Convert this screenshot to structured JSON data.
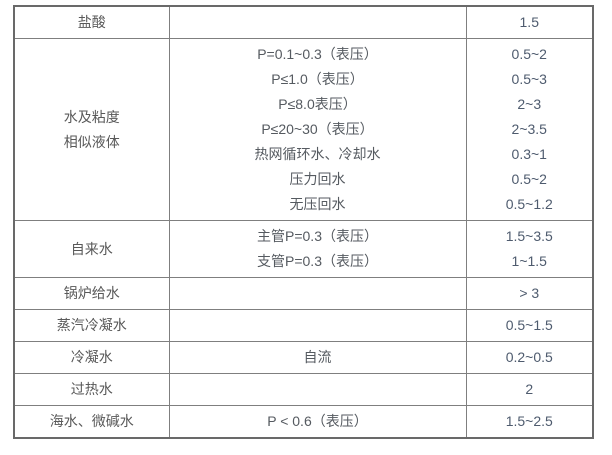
{
  "page": {
    "background": "#ffffff"
  },
  "table": {
    "description": "media-flow-velocity-table",
    "colors": {
      "outer_border": "#696969",
      "inner_border": "#7f7f7f",
      "name_text": "#595959",
      "condition_text": "#555a60",
      "value_text": "#4e5b6e"
    },
    "rows": [
      {
        "name": [
          "盐酸"
        ],
        "conditions": [],
        "values": [
          "1.5"
        ]
      },
      {
        "name": [
          "水及粘度",
          "相似液体"
        ],
        "conditions": [
          "P=0.1~0.3（表压）",
          "P≤1.0（表压）",
          "P≤8.0表压）",
          "P≤20~30（表压）",
          "热网循环水、冷却水",
          "压力回水",
          "无压回水"
        ],
        "values": [
          "0.5~2",
          "0.5~3",
          "2~3",
          "2~3.5",
          "0.3~1",
          "0.5~2",
          "0.5~1.2"
        ]
      },
      {
        "name": [
          "自来水"
        ],
        "conditions": [
          "主管P=0.3（表压）",
          "支管P=0.3（表压）"
        ],
        "values": [
          "1.5~3.5",
          "1~1.5"
        ]
      },
      {
        "name": [
          "锅炉给水"
        ],
        "conditions": [],
        "values": [
          "> 3"
        ]
      },
      {
        "name": [
          "蒸汽冷凝水"
        ],
        "conditions": [],
        "values": [
          "0.5~1.5"
        ]
      },
      {
        "name": [
          "冷凝水"
        ],
        "conditions": [
          "自流"
        ],
        "values": [
          "0.2~0.5"
        ]
      },
      {
        "name": [
          "过热水"
        ],
        "conditions": [],
        "values": [
          "2"
        ]
      },
      {
        "name": [
          "海水、微碱水"
        ],
        "conditions": [
          "P < 0.6（表压）"
        ],
        "values": [
          "1.5~2.5"
        ]
      }
    ]
  }
}
